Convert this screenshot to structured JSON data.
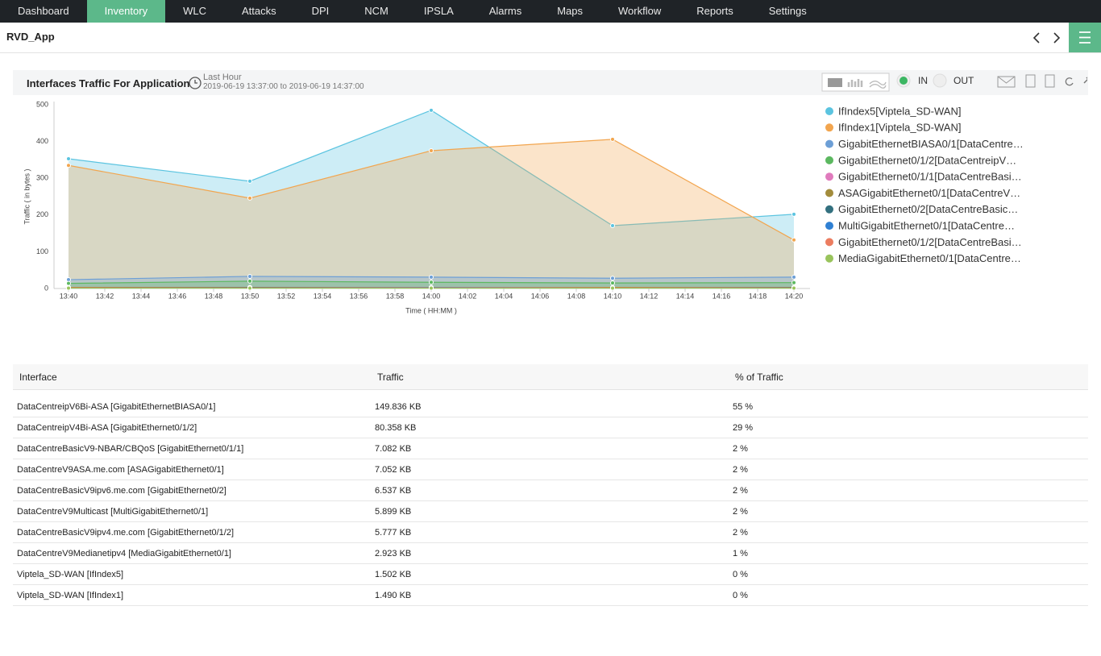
{
  "nav": {
    "items": [
      "Dashboard",
      "Inventory",
      "WLC",
      "Attacks",
      "DPI",
      "NCM",
      "IPSLA",
      "Alarms",
      "Maps",
      "Workflow",
      "Reports",
      "Settings"
    ],
    "active": 1
  },
  "header": {
    "title": "RVD_App"
  },
  "panel": {
    "title": "Interfaces Traffic For Application",
    "period": "Last Hour",
    "range": "2019-06-19 13:37:00 to 2019-06-19 14:37:00",
    "toggles": [
      "IN",
      "OUT"
    ]
  },
  "chart_data": {
    "type": "area",
    "ylabel": "Traffic ( in bytes )",
    "xlabel": "Time ( HH:MM )",
    "x": [
      "13:40",
      "13:50",
      "14:00",
      "14:10",
      "14:20"
    ],
    "xticks": [
      "13:40",
      "13:42",
      "13:44",
      "13:46",
      "13:48",
      "13:50",
      "13:52",
      "13:54",
      "13:56",
      "13:58",
      "14:00",
      "14:02",
      "14:04",
      "14:06",
      "14:08",
      "14:10",
      "14:12",
      "14:14",
      "14:16",
      "14:18",
      "14:20"
    ],
    "ylim": [
      0,
      500
    ],
    "yticks": [
      0,
      100,
      200,
      300,
      400,
      500
    ],
    "grid": false,
    "legend": "right",
    "series": [
      {
        "name": "IfIndex5[Viptela_SD-WAN]",
        "color": "#5bc4e0",
        "values": [
          353,
          292,
          485,
          171,
          202
        ]
      },
      {
        "name": "IfIndex1[Viptela_SD-WAN]",
        "color": "#f2a54e",
        "values": [
          335,
          246,
          375,
          406,
          132
        ]
      },
      {
        "name": "GigabitEthernetBIASA0/1[DataCentre…",
        "color": "#6d9fd6",
        "values": [
          24,
          33,
          31,
          28,
          31
        ]
      },
      {
        "name": "GigabitEthernet0/1/2[DataCentreipV…",
        "color": "#5cb860",
        "values": [
          14,
          20,
          17,
          15,
          16
        ]
      },
      {
        "name": "GigabitEthernet0/1/1[DataCentreBasi…",
        "color": "#e07bbd",
        "values": [
          3,
          2,
          3,
          2,
          3
        ]
      },
      {
        "name": "ASAGigabitEthernet0/1[DataCentreV…",
        "color": "#a38c3c",
        "values": [
          3,
          3,
          2,
          3,
          2
        ]
      },
      {
        "name": "GigabitEthernet0/2[DataCentreBasic…",
        "color": "#33707f",
        "values": [
          2,
          3,
          2,
          2,
          3
        ]
      },
      {
        "name": "MultiGigabitEthernet0/1[DataCentre…",
        "color": "#2f80d3",
        "values": [
          2,
          2,
          3,
          2,
          2
        ]
      },
      {
        "name": "GigabitEthernet0/1/2[DataCentreBasi…",
        "color": "#ec7d60",
        "values": [
          2,
          2,
          2,
          2,
          2
        ]
      },
      {
        "name": "MediaGigabitEthernet0/1[DataCentre…",
        "color": "#99c45c",
        "values": [
          1,
          1,
          1,
          1,
          1
        ]
      }
    ]
  },
  "table": {
    "columns": [
      "Interface",
      "Traffic",
      "% of Traffic"
    ],
    "rows": [
      [
        "DataCentreipV6Bi-ASA [GigabitEthernetBIASA0/1]",
        "149.836 KB",
        "55 %"
      ],
      [
        "DataCentreipV4Bi-ASA [GigabitEthernet0/1/2]",
        "80.358 KB",
        "29 %"
      ],
      [
        "DataCentreBasicV9-NBAR/CBQoS [GigabitEthernet0/1/1]",
        "7.082 KB",
        "2 %"
      ],
      [
        "DataCentreV9ASA.me.com [ASAGigabitEthernet0/1]",
        "7.052 KB",
        "2 %"
      ],
      [
        "DataCentreBasicV9ipv6.me.com [GigabitEthernet0/2]",
        "6.537 KB",
        "2 %"
      ],
      [
        "DataCentreV9Multicast [MultiGigabitEthernet0/1]",
        "5.899 KB",
        "2 %"
      ],
      [
        "DataCentreBasicV9ipv4.me.com [GigabitEthernet0/1/2]",
        "5.777 KB",
        "2 %"
      ],
      [
        "DataCentreV9Medianetipv4 [MediaGigabitEthernet0/1]",
        "2.923 KB",
        "1 %"
      ],
      [
        "Viptela_SD-WAN [IfIndex5]",
        "1.502 KB",
        "0 %"
      ],
      [
        "Viptela_SD-WAN [IfIndex1]",
        "1.490 KB",
        "0 %"
      ]
    ]
  }
}
